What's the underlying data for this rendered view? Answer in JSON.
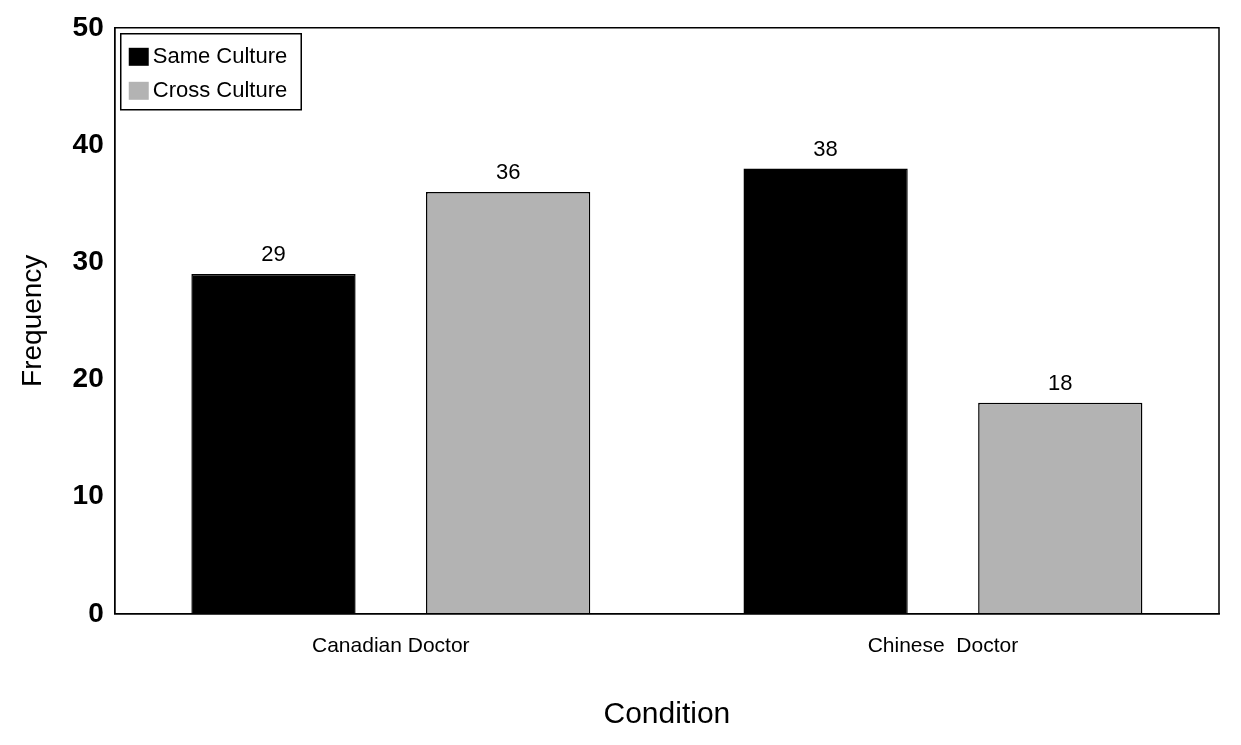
{
  "chart_data": {
    "type": "bar",
    "xlabel": "Condition",
    "ylabel": "Frequency",
    "categories": [
      "Canadian Doctor",
      "Chinese  Doctor"
    ],
    "series": [
      {
        "name": "Same Culture",
        "color": "#000000",
        "values": [
          29,
          38
        ]
      },
      {
        "name": "Cross Culture",
        "color": "#b3b3b3",
        "values": [
          36,
          18
        ]
      }
    ],
    "ylim": [
      0,
      50
    ],
    "yticks": [
      0,
      10,
      20,
      30,
      40,
      50
    ],
    "grid": false,
    "legend": "top left",
    "data_labels": true
  }
}
